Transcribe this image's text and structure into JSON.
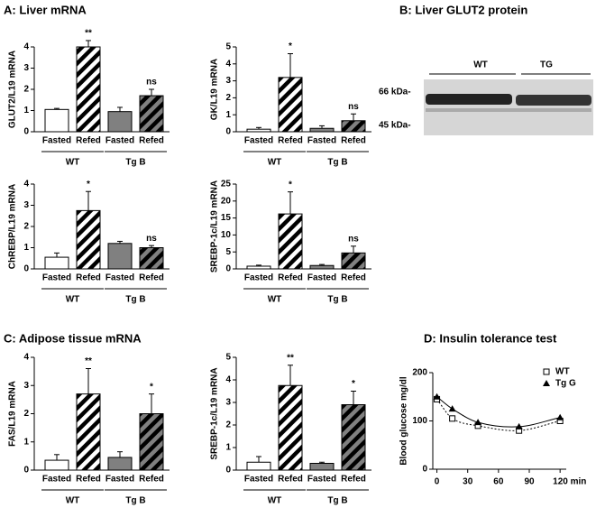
{
  "panels": {
    "a": "A: Liver mRNA",
    "b": "B: Liver GLUT2 protein",
    "c": "C: Adipose tissue mRNA",
    "d": "D: Insulin tolerance test"
  },
  "blot": {
    "groups": [
      "WT",
      "TG"
    ],
    "markers": [
      "66 kDa-",
      "45 kDa-"
    ]
  },
  "chart_data": [
    {
      "type": "bar",
      "ylabel": "GLUT2/L19 mRNA",
      "categories": [
        "Fasted",
        "Refed",
        "Fasted",
        "Refed"
      ],
      "groups": [
        "WT",
        "Tg B"
      ],
      "values": [
        1.05,
        4.0,
        0.95,
        1.7
      ],
      "errors": [
        0.05,
        0.3,
        0.2,
        0.3
      ],
      "annotations": [
        null,
        "**",
        null,
        "ns"
      ],
      "colors": [
        "#ffffff",
        "#ffffff",
        "#808080",
        "#808080"
      ],
      "hatch": [
        false,
        true,
        false,
        true
      ],
      "ylim": [
        0,
        4
      ],
      "yticks": [
        0,
        1,
        2,
        3,
        4
      ]
    },
    {
      "type": "bar",
      "ylabel": "GK/L19 mRNA",
      "categories": [
        "Fasted",
        "Refed",
        "Fasted",
        "Refed"
      ],
      "groups": [
        "WT",
        "Tg B"
      ],
      "values": [
        0.15,
        3.2,
        0.2,
        0.65
      ],
      "errors": [
        0.1,
        1.4,
        0.15,
        0.4
      ],
      "annotations": [
        null,
        "*",
        null,
        "ns"
      ],
      "colors": [
        "#ffffff",
        "#ffffff",
        "#808080",
        "#808080"
      ],
      "hatch": [
        false,
        true,
        false,
        true
      ],
      "ylim": [
        0,
        5
      ],
      "yticks": [
        0,
        1,
        2,
        3,
        4,
        5
      ]
    },
    {
      "type": "bar",
      "ylabel": "ChREBP/L19 mRNA",
      "categories": [
        "Fasted",
        "Refed",
        "Fasted",
        "Refed"
      ],
      "groups": [
        "WT",
        "Tg B"
      ],
      "values": [
        0.55,
        2.75,
        1.2,
        1.0
      ],
      "errors": [
        0.2,
        0.9,
        0.1,
        0.1
      ],
      "annotations": [
        null,
        "*",
        null,
        "ns"
      ],
      "colors": [
        "#ffffff",
        "#ffffff",
        "#808080",
        "#808080"
      ],
      "hatch": [
        false,
        true,
        false,
        true
      ],
      "ylim": [
        0,
        4
      ],
      "yticks": [
        0,
        1,
        2,
        3,
        4
      ]
    },
    {
      "type": "bar",
      "ylabel": "SREBP-1c/L19 mRNA",
      "categories": [
        "Fasted",
        "Refed",
        "Fasted",
        "Refed"
      ],
      "groups": [
        "WT",
        "Tg B"
      ],
      "values": [
        0.8,
        16.2,
        1.0,
        4.7
      ],
      "errors": [
        0.3,
        6.5,
        0.3,
        2.0
      ],
      "annotations": [
        null,
        "*",
        null,
        "ns"
      ],
      "colors": [
        "#ffffff",
        "#ffffff",
        "#808080",
        "#808080"
      ],
      "hatch": [
        false,
        true,
        false,
        true
      ],
      "ylim": [
        0,
        25
      ],
      "yticks": [
        0,
        5,
        10,
        15,
        20,
        25
      ]
    },
    {
      "type": "bar",
      "ylabel": "FAS/L19 mRNA",
      "categories": [
        "Fasted",
        "Refed",
        "Fasted",
        "Refed"
      ],
      "groups": [
        "WT",
        "Tg B"
      ],
      "values": [
        0.35,
        2.7,
        0.45,
        2.0
      ],
      "errors": [
        0.2,
        0.9,
        0.2,
        0.7
      ],
      "annotations": [
        null,
        "**",
        null,
        "*"
      ],
      "colors": [
        "#ffffff",
        "#ffffff",
        "#808080",
        "#808080"
      ],
      "hatch": [
        false,
        true,
        false,
        true
      ],
      "ylim": [
        0,
        4
      ],
      "yticks": [
        0,
        1,
        2,
        3,
        4
      ]
    },
    {
      "type": "bar",
      "ylabel": "SREBP-1c/L19 mRNA",
      "categories": [
        "Fasted",
        "Refed",
        "Fasted",
        "Refed"
      ],
      "groups": [
        "WT",
        "Tg B"
      ],
      "values": [
        0.35,
        3.75,
        0.3,
        2.9
      ],
      "errors": [
        0.25,
        0.9,
        0.05,
        0.6
      ],
      "annotations": [
        null,
        "**",
        null,
        "*"
      ],
      "colors": [
        "#ffffff",
        "#ffffff",
        "#808080",
        "#808080"
      ],
      "hatch": [
        false,
        true,
        false,
        true
      ],
      "ylim": [
        0,
        5
      ],
      "yticks": [
        0,
        1,
        2,
        3,
        4,
        5
      ]
    },
    {
      "type": "line",
      "ylabel": "Blood glucose mg/dl",
      "x": [
        0,
        15,
        40,
        80,
        120
      ],
      "series": [
        {
          "name": "WT",
          "color": "#000000",
          "marker": "square-open",
          "dash": "dotted",
          "values": [
            145,
            105,
            90,
            80,
            100
          ]
        },
        {
          "name": "Tg G",
          "color": "#000000",
          "marker": "triangle",
          "dash": "solid",
          "values": [
            150,
            125,
            97,
            88,
            107
          ]
        }
      ],
      "xlim": [
        -4,
        126
      ],
      "xticks": [
        0,
        30,
        60,
        90,
        {
          "value": 120,
          "label": "120 min"
        }
      ],
      "ylim": [
        0,
        200
      ],
      "yticks": [
        0,
        100,
        200
      ]
    }
  ]
}
